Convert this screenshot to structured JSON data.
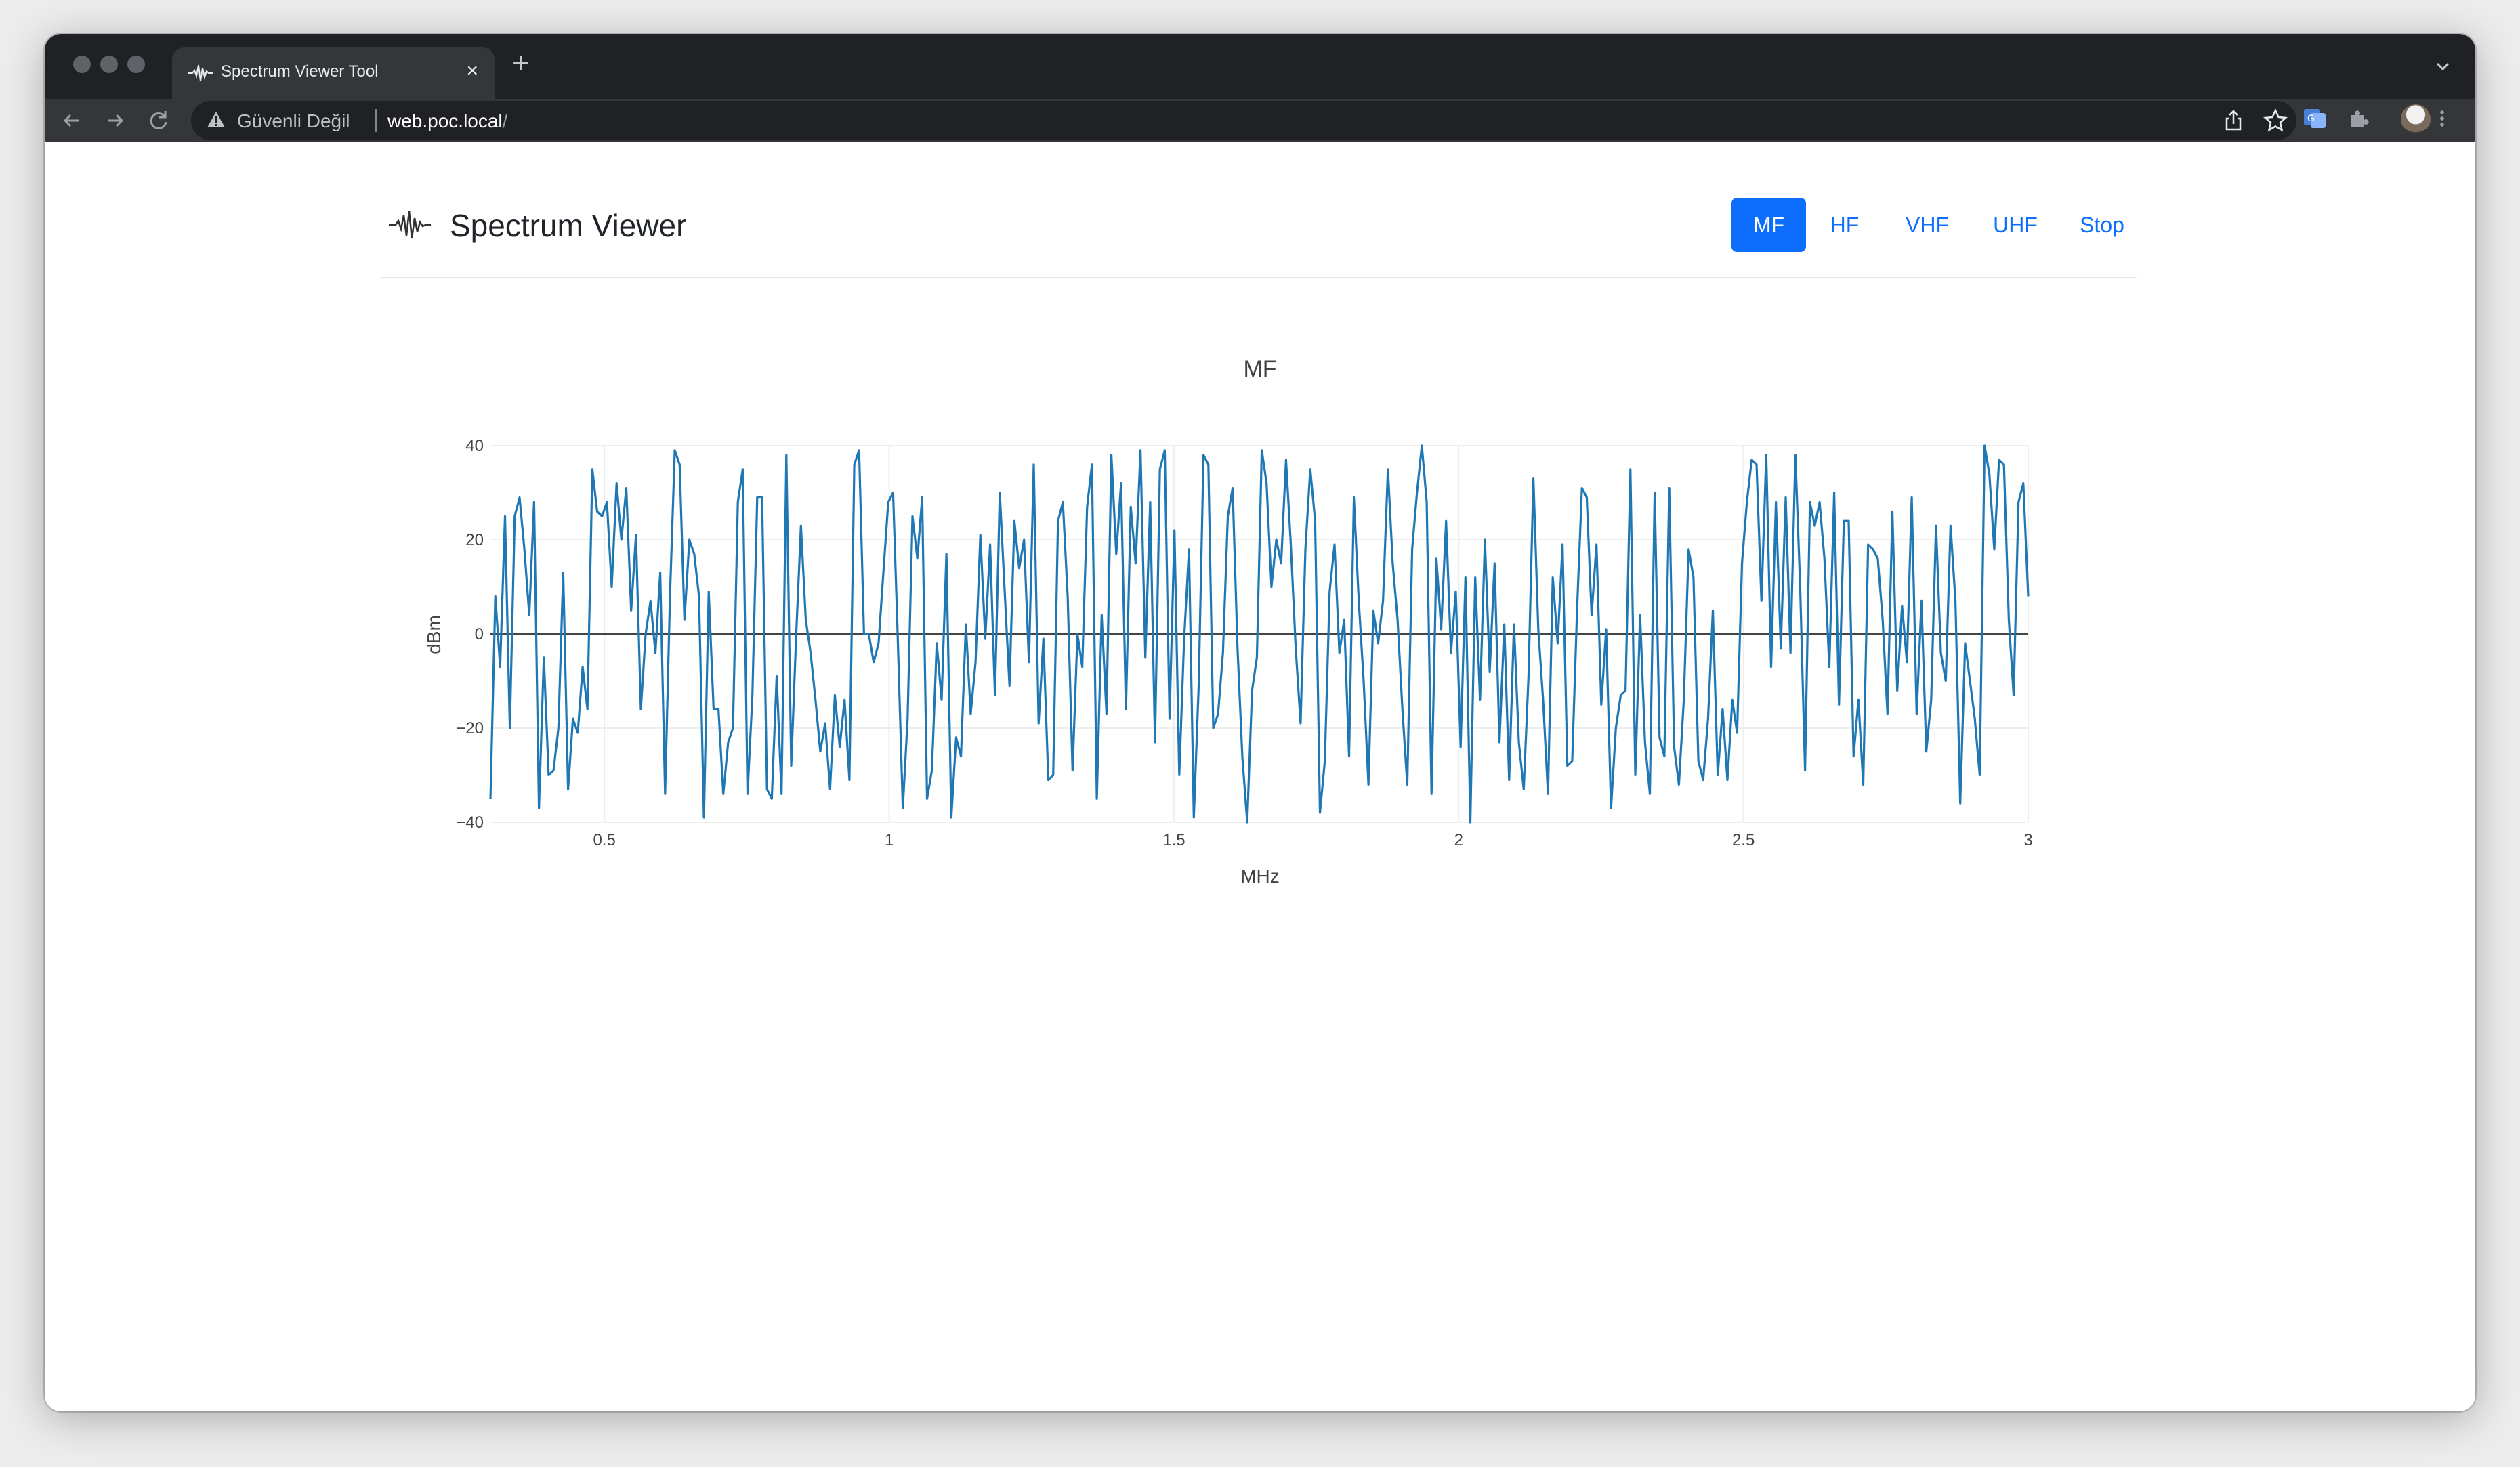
{
  "browser": {
    "tab": {
      "title": "Spectrum Viewer Tool"
    },
    "address": {
      "security_label": "Güvenli Değil",
      "host": "web.poc.local",
      "path": "/"
    }
  },
  "app": {
    "brand": "Spectrum Viewer",
    "nav": [
      {
        "label": "MF",
        "active": true
      },
      {
        "label": "HF",
        "active": false
      },
      {
        "label": "VHF",
        "active": false
      },
      {
        "label": "UHF",
        "active": false
      },
      {
        "label": "Stop",
        "active": false
      }
    ]
  },
  "colors": {
    "accent": "#0d6efd",
    "trace": "#1f77b4"
  },
  "chart_data": {
    "type": "line",
    "title": "MF",
    "xlabel": "MHz",
    "ylabel": "dBm",
    "xlim": [
      0.3,
      3
    ],
    "ylim": [
      -40,
      40
    ],
    "xticks": [
      0.5,
      1,
      1.5,
      2,
      2.5,
      3
    ],
    "yticks": [
      -40,
      -20,
      0,
      20,
      40
    ],
    "tick_labels_x": [
      "0.5",
      "1",
      "1.5",
      "2",
      "2.5",
      "3"
    ],
    "tick_labels_y": [
      "−40",
      "−20",
      "0",
      "20",
      "40"
    ],
    "grid": true,
    "zero_line": true,
    "legend": "none",
    "series": [
      {
        "x_start": 0.3,
        "x_end": 3,
        "values": [
          -35,
          8,
          -7,
          25,
          -20,
          25,
          29,
          18,
          4,
          28,
          -37,
          -5,
          -30,
          -29,
          -20,
          13,
          -33,
          -18,
          -21,
          -7,
          -16,
          35,
          26,
          25,
          28,
          10,
          32,
          20,
          31,
          5,
          21,
          -16,
          0,
          7,
          -4,
          13,
          -34,
          8,
          39,
          36,
          3,
          20,
          17,
          8,
          -39,
          9,
          -16,
          -16,
          -34,
          -23,
          -20,
          28,
          35,
          -34,
          -13,
          29,
          29,
          -33,
          -35,
          -9,
          -34,
          38,
          -28,
          -1,
          23,
          3,
          -4,
          -14,
          -25,
          -19,
          -33,
          -13,
          -24,
          -14,
          -31,
          36,
          39,
          0,
          0,
          -6,
          -2,
          13,
          28,
          30,
          -2,
          -37,
          -18,
          25,
          16,
          29,
          -35,
          -29,
          -2,
          -14,
          17,
          -39,
          -22,
          -26,
          2,
          -17,
          -6,
          21,
          -1,
          19,
          -13,
          30,
          9,
          -11,
          24,
          14,
          20,
          -6,
          36,
          -19,
          -1,
          -31,
          -30,
          24,
          28,
          8,
          -29,
          0,
          -7,
          27,
          36,
          -35,
          4,
          -17,
          38,
          17,
          32,
          -16,
          27,
          15,
          39,
          -5,
          28,
          -23,
          35,
          39,
          -18,
          22,
          -30,
          -1,
          18,
          -39,
          -11,
          38,
          36,
          -20,
          -17,
          -4,
          25,
          31,
          -3,
          -26,
          -40,
          -12,
          -5,
          39,
          32,
          10,
          20,
          15,
          37,
          19,
          -3,
          -19,
          18,
          35,
          24,
          -38,
          -27,
          9,
          19,
          -4,
          3,
          -26,
          29,
          7,
          -10,
          -32,
          5,
          -2,
          7,
          35,
          15,
          3,
          -16,
          -32,
          18,
          30,
          40,
          28,
          -34,
          16,
          1,
          24,
          -4,
          9,
          -24,
          12,
          -40,
          12,
          -14,
          20,
          -8,
          15,
          -23,
          2,
          -31,
          2,
          -23,
          -33,
          -9,
          33,
          1,
          -14,
          -34,
          12,
          -2,
          19,
          -28,
          -27,
          5,
          31,
          29,
          4,
          19,
          -15,
          1,
          -37,
          -20,
          -13,
          -12,
          35,
          -30,
          4,
          -23,
          -34,
          30,
          -22,
          -26,
          31,
          -24,
          -32,
          -14,
          18,
          12,
          -27,
          -31,
          -18,
          5,
          -30,
          -16,
          -31,
          -14,
          -21,
          15,
          28,
          37,
          36,
          7,
          38,
          -7,
          28,
          -3,
          29,
          -4,
          38,
          10,
          -29,
          28,
          23,
          28,
          16,
          -7,
          30,
          -15,
          24,
          24,
          -26,
          -14,
          -32,
          19,
          18,
          16,
          3,
          -17,
          26,
          -12,
          6,
          -6,
          29,
          -17,
          7,
          -25,
          -14,
          23,
          -4,
          -10,
          23,
          7,
          -36,
          -2,
          -10,
          -18,
          -30,
          40,
          34,
          18,
          37,
          36,
          3,
          -13,
          28,
          32,
          8
        ]
      }
    ]
  }
}
